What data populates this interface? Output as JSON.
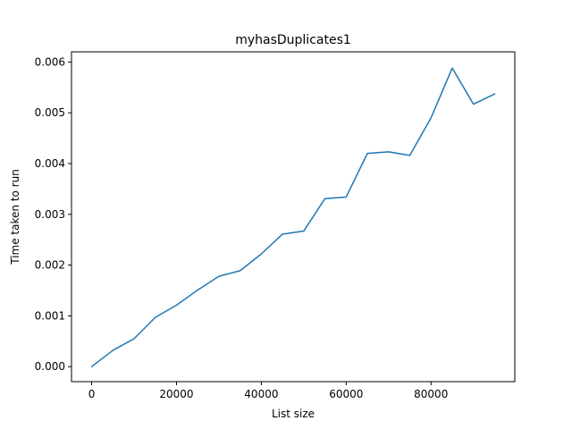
{
  "chart_data": {
    "type": "line",
    "title": "myhasDuplicates1",
    "xlabel": "List size",
    "ylabel": "Time taken to run",
    "xlim": [
      -4750,
      99750
    ],
    "ylim": [
      -0.000295,
      0.0062
    ],
    "x_ticks": [
      0,
      20000,
      40000,
      60000,
      80000
    ],
    "x_tick_labels": [
      "0",
      "20000",
      "40000",
      "60000",
      "80000"
    ],
    "y_ticks": [
      0.0,
      0.001,
      0.002,
      0.003,
      0.004,
      0.005,
      0.006
    ],
    "y_tick_labels": [
      "0.000",
      "0.001",
      "0.002",
      "0.003",
      "0.004",
      "0.005",
      "0.006"
    ],
    "grid": false,
    "series": [
      {
        "color": "#1f77b4",
        "x": [
          0,
          5000,
          10000,
          15000,
          20000,
          25000,
          30000,
          35000,
          40000,
          45000,
          50000,
          55000,
          60000,
          65000,
          70000,
          75000,
          80000,
          85000,
          90000,
          95000
        ],
        "y": [
          0.0,
          0.00032,
          0.00055,
          0.00097,
          0.00121,
          0.00151,
          0.00178,
          0.00189,
          0.00222,
          0.00261,
          0.00267,
          0.00331,
          0.00334,
          0.0042,
          0.00423,
          0.00416,
          0.0049,
          0.00588,
          0.00517,
          0.00537
        ]
      }
    ]
  }
}
